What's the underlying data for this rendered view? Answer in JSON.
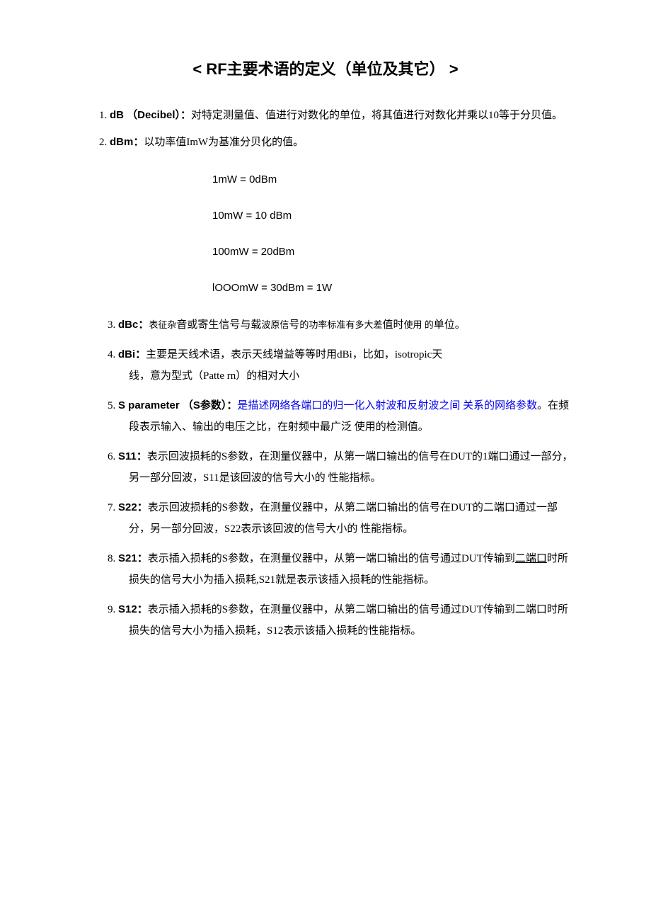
{
  "title": "< RF主要术语的定义（单位及其它） >",
  "intro1_num": "1. ",
  "intro1_term": "dB （Decibel）：",
  "intro1_text": "对特定测量值、值进行对数化的单位，将其值进行对数化并乘以10等于分贝值。",
  "intro2_num": "2. ",
  "intro2_term": "dBm：",
  "intro2_text": "以功率值ImW为基准分贝化的值。",
  "formulas": {
    "f1": "1mW = 0dBm",
    "f2": "10mW = 10 dBm",
    "f3": "100mW = 20dBm",
    "f4": "lOOOmW = 30dBm = 1W"
  },
  "items": {
    "i3_num": "3. ",
    "i3_term": "dBc：",
    "i3_pre": "表征杂",
    "i3_mid1": "音或寄生信",
    "i3_mid2": "号与载",
    "i3_mid3": "波原信",
    "i3_mid4": "号",
    "i3_mid5": "的功率标",
    "i3_mid6": "准有多大差",
    "i3_mid7": "值时",
    "i3_mid8": "使用 的",
    "i3_end": "单位。",
    "i4_num": "4. ",
    "i4_term": "dBi：",
    "i4_text1": "主要是天线术语，表示天线增益等等时用dBi，比如，isotropic天",
    "i4_text2": "线，意为型式（Patte rn）的相对大小",
    "i5_num": "5. ",
    "i5_term": "S parameter （S参数）：",
    "i5_link": "是描述网络各端口的归一化入射波和反射波之间 关系的网络参数",
    "i5_text": "。在频段表示输入、输出的电压之比，在射频中最广泛 使用的检测值。",
    "i6_num": "6. ",
    "i6_term": "S11：",
    "i6_text": "表示回波损耗的S参数，在测量仪器中，从第一端口输出的信号在DUT的1端口通过一部分，另一部分回波，S11是该回波的信号大小的 性能指标。",
    "i7_num": "7. ",
    "i7_term": "S22：",
    "i7_text": "表示回波损耗的S参数，在测量仪器中，从第二端口输出的信号在DUT的二端口通过一部分，另一部分回波，S22表示该回波的信号大小的 性能指标。",
    "i8_num": "8. ",
    "i8_term": "S21：",
    "i8_text1": "表示插入损耗的S参数，在测量仪器中，从第一端口输出的信号通过DUT传输到",
    "i8_underline": "二端口",
    "i8_text2": "时所损失的信号大小为插入损耗,S21就是表示该插入损耗的性能指标。",
    "i9_num": "9. ",
    "i9_term": "S12：",
    "i9_text": "表示插入损耗的S参数，在测量仪器中，从第二端口输出的信号通过DUT传输到二端口时所损失的信号大小为插入损耗，S12表示该插入损耗的性能指标。"
  }
}
